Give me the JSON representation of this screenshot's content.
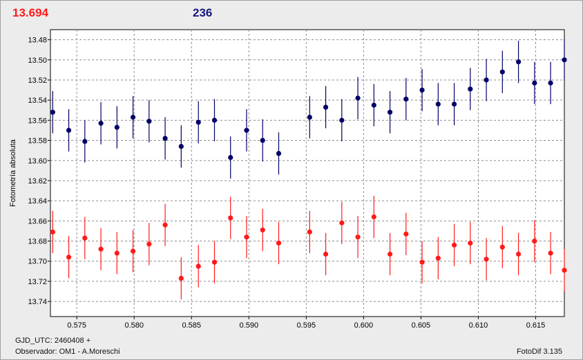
{
  "header": {
    "magnitude_value": "13.694",
    "magnitude_color": "#ff1a1a",
    "count_value": "236",
    "count_color": "#1a1a80"
  },
  "footer": {
    "gjd_label": "GJD_UTC: 2460408 +",
    "observer_label": "Observador: OM1 - A.Moreschi",
    "software_label": "FotoDif 3.135"
  },
  "chart_data": {
    "type": "scatter",
    "ylabel": "Fotometría absoluta",
    "xlabel": "",
    "y_inverted": true,
    "xlim": [
      0.5727,
      0.6175
    ],
    "ylim": [
      13.47,
      13.755
    ],
    "x_ticks": [
      "0.575",
      "0.580",
      "0.585",
      "0.590",
      "0.595",
      "0.600",
      "0.605",
      "0.610",
      "0.615"
    ],
    "y_ticks": [
      "13.48",
      "13.50",
      "13.52",
      "13.54",
      "13.56",
      "13.58",
      "13.60",
      "13.62",
      "13.64",
      "13.66",
      "13.68",
      "13.70",
      "13.72",
      "13.74"
    ],
    "grid": true,
    "series": [
      {
        "color": "#000066",
        "error": 0.021,
        "points": [
          [
            0.5729,
            13.552
          ],
          [
            0.5743,
            13.57
          ],
          [
            0.5757,
            13.581
          ],
          [
            0.5771,
            13.563
          ],
          [
            0.5785,
            13.567
          ],
          [
            0.5799,
            13.557
          ],
          [
            0.5813,
            13.561
          ],
          [
            0.5827,
            13.578
          ],
          [
            0.5841,
            13.586
          ],
          [
            0.5856,
            13.562
          ],
          [
            0.587,
            13.56
          ],
          [
            0.5884,
            13.597
          ],
          [
            0.5898,
            13.57
          ],
          [
            0.5912,
            13.58
          ],
          [
            0.5926,
            13.593
          ],
          [
            0.5953,
            13.557
          ],
          [
            0.5967,
            13.547
          ],
          [
            0.5981,
            13.56
          ],
          [
            0.5995,
            13.538
          ],
          [
            0.6009,
            13.545
          ],
          [
            0.6023,
            13.552
          ],
          [
            0.6037,
            13.539
          ],
          [
            0.6051,
            13.53
          ],
          [
            0.6065,
            13.544
          ],
          [
            0.6079,
            13.544
          ],
          [
            0.6093,
            13.529
          ],
          [
            0.6107,
            13.52
          ],
          [
            0.6121,
            13.512
          ],
          [
            0.6135,
            13.502
          ],
          [
            0.6149,
            13.523
          ],
          [
            0.6163,
            13.523
          ],
          [
            0.6175,
            13.5
          ]
        ]
      },
      {
        "color": "#ff1a1a",
        "error": 0.021,
        "points": [
          [
            0.5729,
            13.671
          ],
          [
            0.5743,
            13.696
          ],
          [
            0.5757,
            13.677
          ],
          [
            0.5771,
            13.688
          ],
          [
            0.5785,
            13.692
          ],
          [
            0.5799,
            13.69
          ],
          [
            0.5813,
            13.683
          ],
          [
            0.5827,
            13.664
          ],
          [
            0.5841,
            13.717
          ],
          [
            0.5856,
            13.705
          ],
          [
            0.587,
            13.701
          ],
          [
            0.5884,
            13.657
          ],
          [
            0.5898,
            13.676
          ],
          [
            0.5912,
            13.669
          ],
          [
            0.5926,
            13.682
          ],
          [
            0.5953,
            13.671
          ],
          [
            0.5967,
            13.693
          ],
          [
            0.5981,
            13.662
          ],
          [
            0.5995,
            13.676
          ],
          [
            0.6009,
            13.656
          ],
          [
            0.6023,
            13.693
          ],
          [
            0.6037,
            13.673
          ],
          [
            0.6051,
            13.701
          ],
          [
            0.6065,
            13.697
          ],
          [
            0.6079,
            13.684
          ],
          [
            0.6093,
            13.682
          ],
          [
            0.6107,
            13.698
          ],
          [
            0.6121,
            13.686
          ],
          [
            0.6135,
            13.693
          ],
          [
            0.6149,
            13.68
          ],
          [
            0.6163,
            13.692
          ],
          [
            0.6175,
            13.709
          ]
        ]
      }
    ]
  }
}
